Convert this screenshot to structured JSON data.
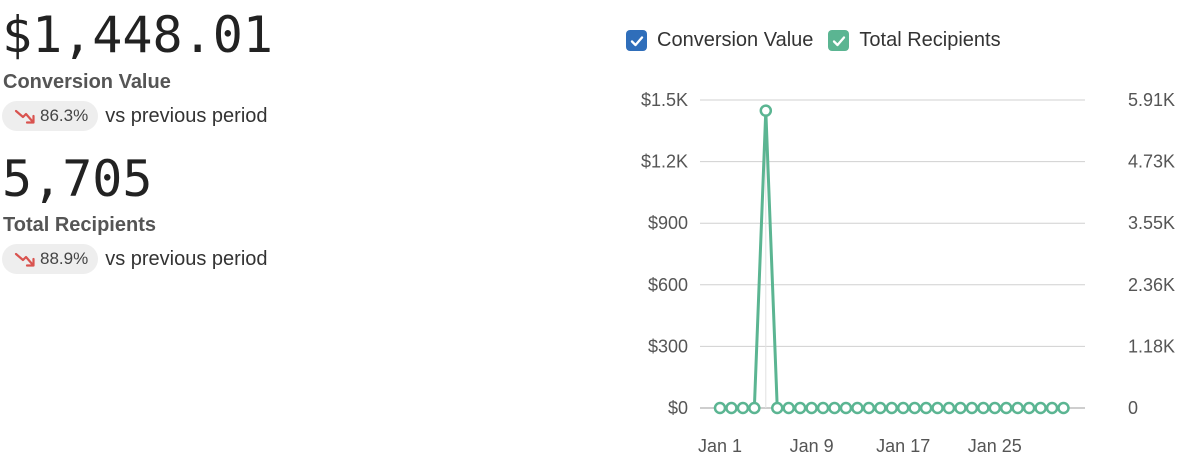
{
  "metrics": [
    {
      "value": "$1,448.01",
      "label": "Conversion Value",
      "change": "86.3%",
      "change_text": "vs previous period"
    },
    {
      "value": "5,705",
      "label": "Total Recipients",
      "change": "88.9%",
      "change_text": "vs previous period"
    }
  ],
  "legend": [
    {
      "label": "Conversion Value",
      "color": "#2f6eba",
      "checked": true
    },
    {
      "label": "Total Recipients",
      "color": "#5bb592",
      "checked": true
    }
  ],
  "colors": {
    "down_arrow": "#d9534f",
    "grid": "#d0d0d0",
    "series": "#5bb592",
    "point_fill": "#ffffff"
  },
  "chart_data": {
    "type": "line",
    "grid": true,
    "legend_position": "top",
    "y_ticks": [
      "$0",
      "$300",
      "$600",
      "$900",
      "$1.2K",
      "$1.5K"
    ],
    "y_right_ticks": [
      "0",
      "1.18K",
      "2.36K",
      "3.55K",
      "4.73K",
      "5.91K"
    ],
    "x_ticks": [
      "Jan 1",
      "Jan 9",
      "Jan 17",
      "Jan 25"
    ],
    "ylim": [
      0,
      1500
    ],
    "y_right_lim": [
      0,
      5910
    ],
    "x": [
      "Jan 1",
      "Jan 2",
      "Jan 3",
      "Jan 4",
      "Jan 5",
      "Jan 6",
      "Jan 7",
      "Jan 8",
      "Jan 9",
      "Jan 10",
      "Jan 11",
      "Jan 12",
      "Jan 13",
      "Jan 14",
      "Jan 15",
      "Jan 16",
      "Jan 17",
      "Jan 18",
      "Jan 19",
      "Jan 20",
      "Jan 21",
      "Jan 22",
      "Jan 23",
      "Jan 24",
      "Jan 25",
      "Jan 26",
      "Jan 27",
      "Jan 28",
      "Jan 29",
      "Jan 30",
      "Jan 31"
    ],
    "series": [
      {
        "name": "Conversion Value",
        "axis": "left",
        "values": [
          0,
          0,
          0,
          0,
          1448.01,
          0,
          0,
          0,
          0,
          0,
          0,
          0,
          0,
          0,
          0,
          0,
          0,
          0,
          0,
          0,
          0,
          0,
          0,
          0,
          0,
          0,
          0,
          0,
          0,
          0,
          0
        ]
      },
      {
        "name": "Total Recipients",
        "axis": "right",
        "values": [
          0,
          0,
          0,
          0,
          5705,
          0,
          0,
          0,
          0,
          0,
          0,
          0,
          0,
          0,
          0,
          0,
          0,
          0,
          0,
          0,
          0,
          0,
          0,
          0,
          0,
          0,
          0,
          0,
          0,
          0,
          0
        ]
      }
    ]
  }
}
